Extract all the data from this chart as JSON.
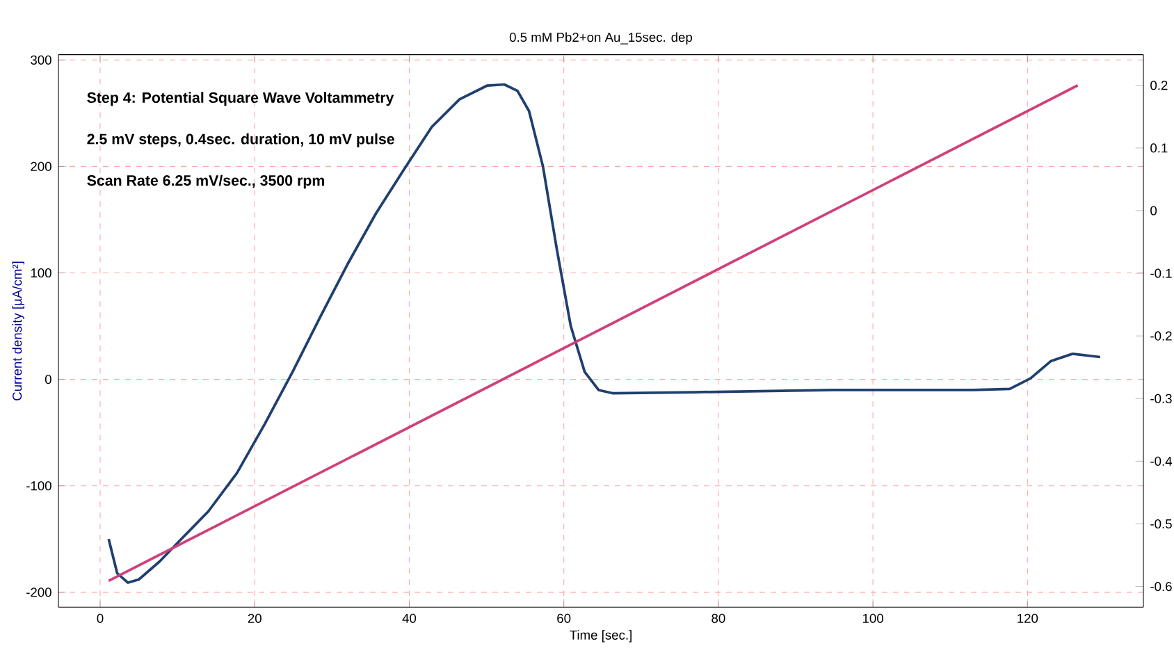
{
  "chart_data": {
    "type": "line",
    "title": "0.5 mM Pb2+on Au_15sec. dep",
    "xlabel": "Time [sec.]",
    "ylabel": "Current density [µA/cm²]",
    "annotations": [
      "Step 4: Potential Square Wave Voltammetry",
      "2.5 mV steps, 0.4sec. duration, 10 mV pulse",
      "Scan Rate 6.25 mV/sec., 3500 rpm"
    ],
    "xlim": [
      -5.4,
      135
    ],
    "xticks": [
      0,
      20,
      40,
      60,
      80,
      100,
      120
    ],
    "ylim": [
      -214,
      305
    ],
    "yticks": [
      -200,
      -100,
      0,
      100,
      200,
      300
    ],
    "y2lim": [
      -0.633,
      0.249
    ],
    "y2ticks": [
      -0.6,
      -0.5,
      -0.4,
      -0.3,
      -0.2,
      -0.1,
      0,
      0.1,
      0.2
    ],
    "grid": true,
    "marker": "none",
    "line_style": "solid",
    "series": [
      {
        "color": "#1f3f6f",
        "x": [
          1.1,
          2.2,
          3.6,
          5,
          7.7,
          10.5,
          14,
          17.7,
          21.3,
          24.9,
          28.5,
          32,
          35.7,
          39.3,
          42.9,
          46.5,
          50.1,
          52.3,
          54,
          55.5,
          57.3,
          59.1,
          60.9,
          62.7,
          64.5,
          66.3,
          77,
          95,
          113,
          117.7,
          120.4,
          123,
          125.8,
          129.4
        ],
        "values": [
          -150,
          -182,
          -191,
          -188,
          -171,
          -150,
          -124,
          -88,
          -42,
          7,
          59,
          108,
          156,
          197,
          237,
          263,
          276,
          277,
          271,
          252,
          200,
          122,
          50,
          7,
          -10,
          -13,
          -12,
          -10,
          -10,
          -9,
          1,
          17,
          24,
          21
        ]
      },
      {
        "color": "#d0407a",
        "axis": "y2",
        "x": [
          1.1,
          126.5
        ],
        "values": [
          -0.591,
          0.2
        ]
      }
    ]
  }
}
